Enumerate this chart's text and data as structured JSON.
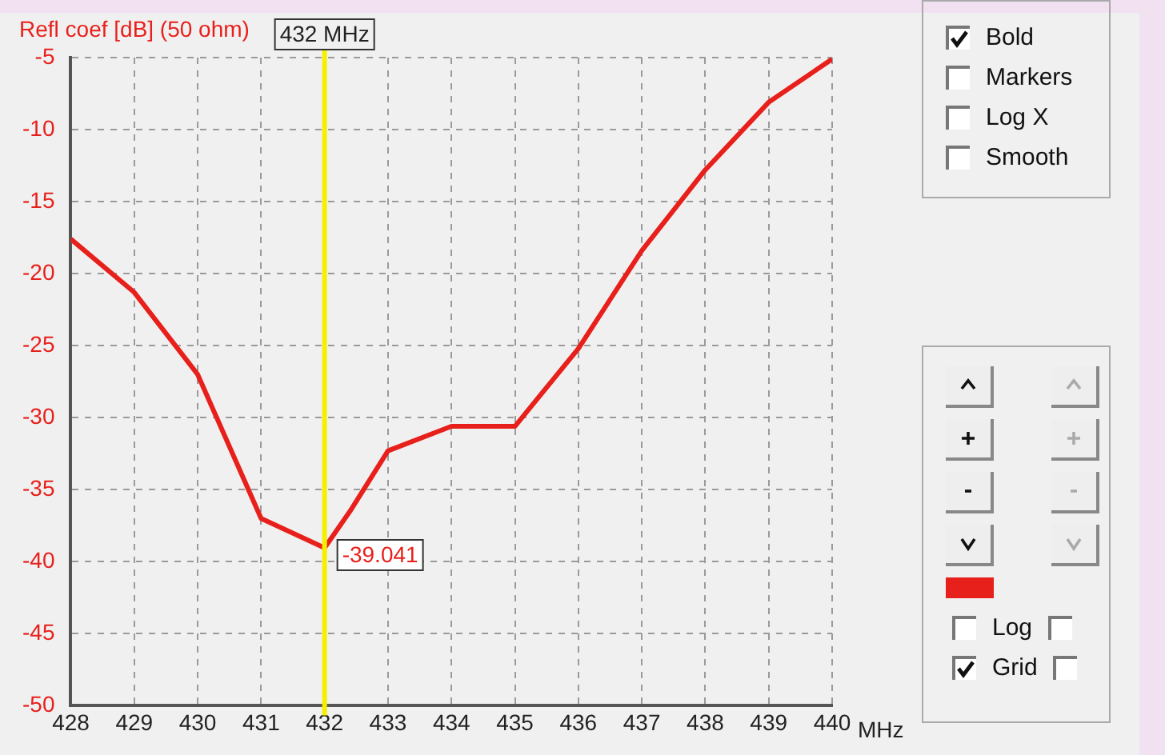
{
  "chart_data": {
    "type": "line",
    "ylabel": "Refl coef [dB] (50 ohm)",
    "xlabel": "MHz",
    "x": [
      428,
      429,
      430,
      431,
      432,
      432.4,
      433,
      434,
      435,
      436,
      437,
      438,
      439,
      440
    ],
    "series": [
      {
        "color": "#e8201c",
        "values": [
          -17.6,
          -21.3,
          -27,
          -37,
          -39.041,
          -36.5,
          -32.3,
          -30.6,
          -30.6,
          -25.2,
          -18.4,
          -12.8,
          -8.1,
          -5.1
        ]
      }
    ],
    "xlim": [
      428,
      440
    ],
    "xticks": [
      428,
      429,
      430,
      431,
      432,
      433,
      434,
      435,
      436,
      437,
      438,
      439,
      440
    ],
    "ylim": [
      -50,
      -5
    ],
    "yticks": [
      -50,
      -45,
      -40,
      -35,
      -30,
      -25,
      -20,
      -15,
      -10,
      -5
    ],
    "grid": true,
    "marker": "none",
    "line_style": "solid",
    "legend": false,
    "ref_lines": [
      {
        "axis": "x",
        "value": 432,
        "label": "432 MHz",
        "color": "#f5f000"
      }
    ],
    "annotations": [
      {
        "text": "-39.041",
        "x": 432,
        "y": -39.041
      },
      "Bold",
      "Markers",
      "Log X",
      "Smooth",
      "Log",
      "Grid"
    ]
  }
}
